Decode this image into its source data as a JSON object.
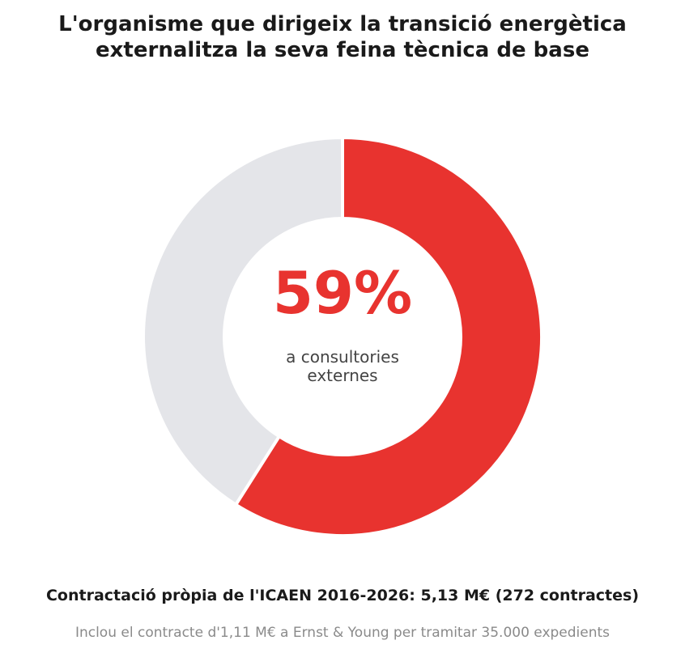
{
  "chart_data": {
    "type": "pie",
    "style": "donut",
    "title_lines": [
      "L'organisme que dirigeix la transició energètica",
      "externalitza la seva feina tècnica de base"
    ],
    "slices": [
      {
        "label": "",
        "value": 59,
        "color": "#e8332f"
      },
      {
        "label": "",
        "value": 41,
        "color": "#e4e5e9"
      }
    ],
    "center_value": "59%",
    "center_value_color": "#e8332f",
    "center_label_lines": [
      "a consultories",
      "externes"
    ],
    "center_label_color": "#444444",
    "legend": "none",
    "grid": false
  },
  "footer": {
    "main": "Contractació pròpia de l'ICAEN 2016-2026: 5,13 M€ (272 contractes)",
    "note": "Inclou el contracte d'1,11 M€ a Ernst & Young per tramitar 35.000 expedients"
  }
}
